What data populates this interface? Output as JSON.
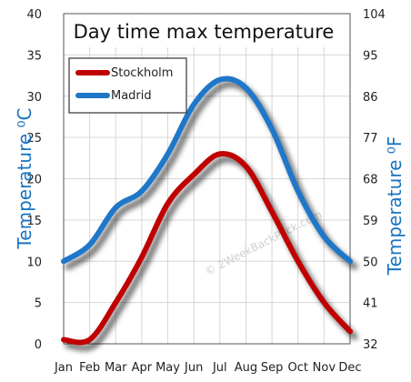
{
  "chart_data": {
    "type": "line",
    "title": "Day time max temperature",
    "categories": [
      "Jan",
      "Feb",
      "Mar",
      "Apr",
      "May",
      "Jun",
      "Jul",
      "Aug",
      "Sep",
      "Oct",
      "Nov",
      "Dec"
    ],
    "series": [
      {
        "name": "Stockholm",
        "color": "#c00000",
        "values": [
          0.5,
          0.5,
          5,
          10.5,
          17,
          20.5,
          23,
          21.5,
          16,
          10,
          5,
          1.5
        ]
      },
      {
        "name": "Madrid",
        "color": "#1f77c9",
        "values": [
          10,
          12,
          16.5,
          18.5,
          23,
          29,
          32,
          31,
          26,
          18.5,
          13,
          10
        ]
      }
    ],
    "ylabel": "Temperature ⁰C",
    "y2label": "Temperature ⁰F",
    "ylim": [
      0,
      40
    ],
    "y_ticks": [
      "0",
      "5",
      "10",
      "15",
      "20",
      "25",
      "30",
      "35",
      "40"
    ],
    "y2lim": [
      32,
      104
    ],
    "y2_ticks": [
      "32",
      "41",
      "50",
      "59",
      "68",
      "77",
      "86",
      "95",
      "104"
    ],
    "grid": true,
    "legend_position": "top-left",
    "watermark": "© 2WeekBackPack.com"
  }
}
